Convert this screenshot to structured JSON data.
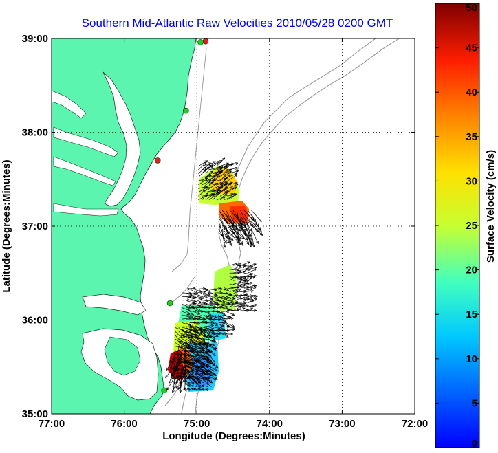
{
  "chart_data": {
    "type": "scatter",
    "title": "Southern Mid-Atlantic Raw Velocities 2010/05/28 0200 GMT",
    "xlabel": "Longitude (Degrees:Minutes)",
    "ylabel": "Latitude (Degrees:Minutes)",
    "xlim": [
      -77,
      -72
    ],
    "ylim": [
      35,
      39
    ],
    "x_ticks": [
      {
        "value": -77,
        "label": "77:00"
      },
      {
        "value": -76,
        "label": "76:00"
      },
      {
        "value": -75,
        "label": "75:00"
      },
      {
        "value": -74,
        "label": "74:00"
      },
      {
        "value": -73,
        "label": "73:00"
      },
      {
        "value": -72,
        "label": "72:00"
      }
    ],
    "y_ticks": [
      {
        "value": 35,
        "label": "35:00"
      },
      {
        "value": 36,
        "label": "36:00"
      },
      {
        "value": 37,
        "label": "37:00"
      },
      {
        "value": 38,
        "label": "38:00"
      },
      {
        "value": 39,
        "label": "39:00"
      }
    ],
    "grid": true,
    "colorbar": {
      "label": "Surface Velocity (cm/s)",
      "range": [
        0,
        50
      ],
      "ticks": [
        "0",
        "5",
        "10",
        "15",
        "20",
        "25",
        "30",
        "35",
        "40",
        "45",
        "50"
      ]
    },
    "colors": {
      "land": "#5cf5b0",
      "bathymetry": "#9a9a9a",
      "arrow": "#000000",
      "title": "#0000ff",
      "site_green": "#22cc22",
      "site_red": "#dd2222"
    },
    "stations": [
      {
        "lon": -74.88,
        "lat": 38.97,
        "status": "red"
      },
      {
        "lon": -74.95,
        "lat": 38.96,
        "status": "green"
      },
      {
        "lon": -75.15,
        "lat": 38.23,
        "status": "green"
      },
      {
        "lon": -75.54,
        "lat": 37.7,
        "status": "red"
      },
      {
        "lon": -75.37,
        "lat": 36.18,
        "status": "green"
      },
      {
        "lon": -75.45,
        "lat": 35.25,
        "status": "green"
      }
    ],
    "velocity_clusters": [
      {
        "name": "",
        "lon_range": [
          -74.98,
          -74.55
        ],
        "lat_range": [
          37.28,
          37.65
        ],
        "speed_cm_s": [
          20,
          30
        ],
        "direction_deg": 60
      },
      {
        "name": "",
        "lon_range": [
          -74.7,
          -74.25
        ],
        "lat_range": [
          36.93,
          37.17
        ],
        "speed_cm_s": [
          35,
          45
        ],
        "direction_deg": 150
      },
      {
        "name": "",
        "lon_range": [
          -74.55,
          -74.3
        ],
        "lat_range": [
          36.1,
          36.6
        ],
        "speed_cm_s": [
          18,
          24
        ],
        "direction_deg": 80
      },
      {
        "name": "",
        "lon_range": [
          -75.2,
          -74.6
        ],
        "lat_range": [
          35.85,
          36.35
        ],
        "speed_cm_s": [
          12,
          22
        ],
        "direction_deg": 100
      },
      {
        "name": "",
        "lon_range": [
          -75.3,
          -74.85
        ],
        "lat_range": [
          35.4,
          35.95
        ],
        "speed_cm_s": [
          20,
          30
        ],
        "direction_deg": 120
      },
      {
        "name": "",
        "lon_range": [
          -75.3,
          -75.15
        ],
        "lat_range": [
          35.4,
          35.75
        ],
        "speed_cm_s": [
          40,
          48
        ],
        "direction_deg": 200
      },
      {
        "name": "",
        "lon_range": [
          -75.1,
          -74.8
        ],
        "lat_range": [
          35.25,
          35.75
        ],
        "speed_cm_s": [
          8,
          14
        ],
        "direction_deg": 290
      }
    ]
  }
}
